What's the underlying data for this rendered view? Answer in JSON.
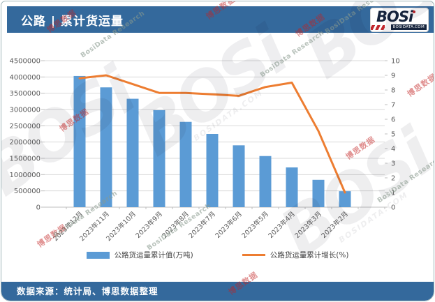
{
  "header": {
    "title": "公路 | 累计货运量"
  },
  "logo": {
    "brand": "BOSi",
    "domain": "BOSIDATA.COM"
  },
  "footer": {
    "source_label": "数据来源：统计局、博思数据整理"
  },
  "watermark": {
    "brand": "BOSi",
    "domain": "BOSIDATA.COM",
    "cn": "博思数据",
    "en": "BosiData Research"
  },
  "colors": {
    "bar": "#5B9BD5",
    "line": "#ED7D31",
    "band": "#34699C",
    "grid": "#D9D9D9",
    "axis_line": "#BFBFBF",
    "axis_text": "#595959",
    "card_border": "#9EB4B8",
    "logo_navy": "#16243D",
    "logo_red": "#C1272D"
  },
  "chart_data": {
    "type": "combo-bar-line",
    "title": "公路 | 累计货运量",
    "categories": [
      "2023年12月",
      "2023年11月",
      "2023年10月",
      "2023年9月",
      "2023年8月",
      "2023年7月",
      "2023年6月",
      "2023年5月",
      "2023年4月",
      "2023年3月",
      "2023年2月"
    ],
    "series": [
      {
        "name": "公路货运量累计值(万吨)",
        "type": "bar",
        "axis": "left",
        "color": "#5B9BD5",
        "values": [
          4030000,
          3680000,
          3330000,
          2980000,
          2620000,
          2250000,
          1900000,
          1570000,
          1220000,
          840000,
          490000
        ]
      },
      {
        "name": "公路货运量累计增长(%)",
        "type": "line",
        "axis": "right",
        "color": "#ED7D31",
        "values": [
          8.8,
          9.0,
          8.4,
          7.8,
          7.8,
          7.7,
          7.6,
          8.2,
          8.5,
          5.2,
          1.0
        ]
      }
    ],
    "left_axis": {
      "min": 0,
      "max": 4500000,
      "step": 500000
    },
    "right_axis": {
      "min": 0,
      "max": 10,
      "step": 1
    },
    "grid": true,
    "legend_position": "bottom"
  }
}
